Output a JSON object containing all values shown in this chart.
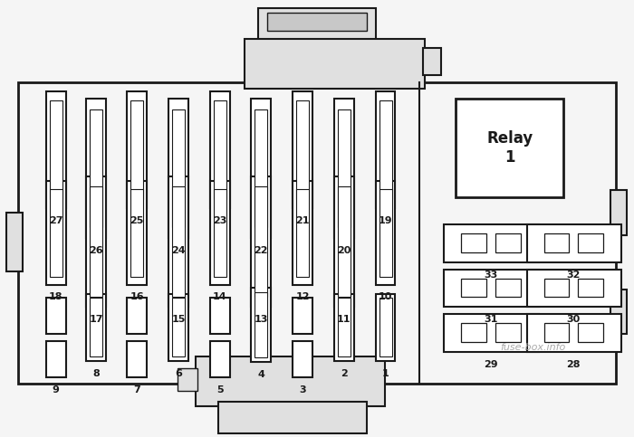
{
  "bg_color": "#f5f5f5",
  "line_color": "#1a1a1a",
  "fuse_fill": "#ffffff",
  "watermark": "fuse-box.info",
  "fig_width": 7.0,
  "fig_height": 4.83
}
